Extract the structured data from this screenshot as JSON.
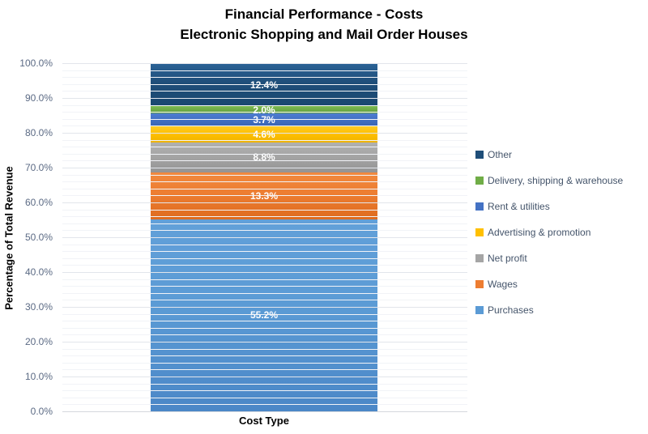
{
  "chart_data": {
    "type": "bar",
    "stacked": true,
    "title": "Financial Performance - Costs",
    "subtitle": "Electronic Shopping and Mail Order Houses",
    "xlabel": "Cost Type",
    "ylabel": "Percentage of Total Revenue",
    "categories": [
      "Cost Type"
    ],
    "ylim": [
      0,
      100
    ],
    "ytick_step_major": 10,
    "ytick_step_minor": 2,
    "ytick_labels": [
      "0.0%",
      "10.0%",
      "20.0%",
      "30.0%",
      "40.0%",
      "50.0%",
      "60.0%",
      "70.0%",
      "80.0%",
      "90.0%",
      "100.0%"
    ],
    "grid": {
      "minor_color": "#F1F3F7",
      "major_color": "#E2E5EB",
      "axis_color": "#D5D8DE",
      "minor_on": true,
      "major_on": true
    },
    "legend_position": "right",
    "series": [
      {
        "name": "Other",
        "value": 12.4,
        "label": "12.4%",
        "color": "#1F4E79",
        "color_light": "#2B6397",
        "color_dark": "#1A4871"
      },
      {
        "name": "Delivery, shipping & warehouse",
        "value": 2.0,
        "label": "2.0%",
        "color": "#70AD47",
        "color_light": "#7CBB53",
        "color_dark": "#63A03C"
      },
      {
        "name": "Rent & utilities",
        "value": 3.7,
        "label": "3.7%",
        "color": "#4472C4",
        "color_light": "#4E7DD1",
        "color_dark": "#3A64B2"
      },
      {
        "name": "Advertising & promotion",
        "value": 4.6,
        "label": "4.6%",
        "color": "#FFC000",
        "color_light": "#FFCB28",
        "color_dark": "#EFB300"
      },
      {
        "name": "Net profit",
        "value": 8.8,
        "label": "8.8%",
        "color": "#A5A5A5",
        "color_light": "#B1B1B1",
        "color_dark": "#949494"
      },
      {
        "name": "Wages",
        "value": 13.3,
        "label": "13.3%",
        "color": "#ED7D31",
        "color_light": "#F1893E",
        "color_dark": "#DE6B1F"
      },
      {
        "name": "Purchases",
        "value": 55.2,
        "label": "55.2%",
        "color": "#5B9BD5",
        "color_light": "#62A0D9",
        "color_dark": "#4B87C7"
      }
    ],
    "text_colors": {
      "title": "#000000",
      "axis_tick": "#5B6A84",
      "legend": "#44546A",
      "data_label": "#FFFFFF"
    }
  }
}
